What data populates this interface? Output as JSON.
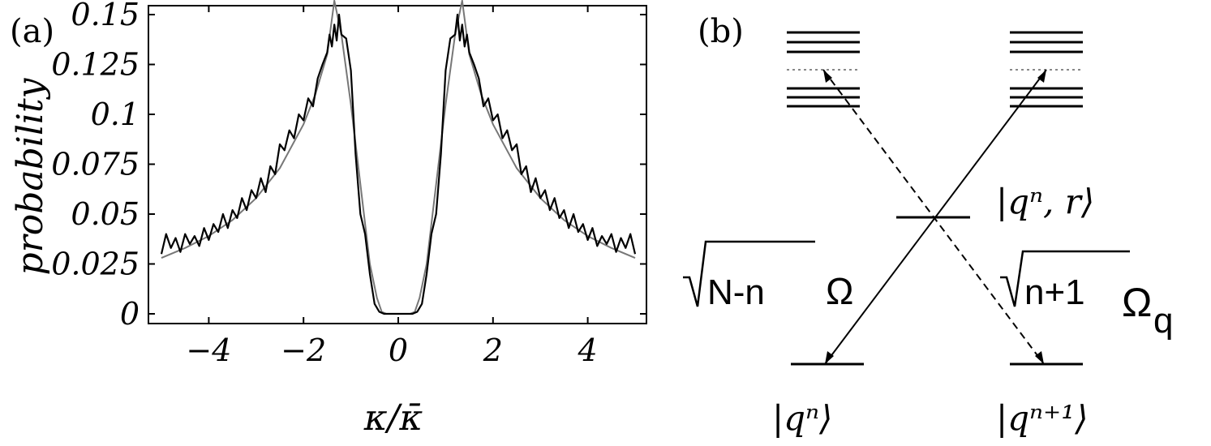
{
  "panel_a": {
    "label": "(a)",
    "chart_data": {
      "type": "line",
      "ylabel": "probability",
      "xlabel": "κ/κ̄",
      "xlim": [
        -5,
        5
      ],
      "ylim": [
        0,
        0.16
      ],
      "x_ticks": [
        -4,
        -2,
        0,
        2,
        4
      ],
      "y_ticks": [
        0,
        0.025,
        0.05,
        0.075,
        0.1,
        0.125,
        0.15
      ],
      "x_tick_labels": [
        "−4",
        "−2",
        "0",
        "2",
        "4"
      ],
      "y_tick_labels": [
        "0",
        "0.025",
        "0.05",
        "0.075",
        "0.1",
        "0.125",
        "0.15"
      ],
      "grid": false,
      "series": [
        {
          "style": "smooth",
          "x": [
            -5,
            -4.5,
            -4,
            -3.5,
            -3,
            -2.5,
            -2,
            -1.75,
            -1.5,
            -1.35,
            -1.2,
            -1.0,
            -0.8,
            -0.6,
            -0.45,
            -0.35,
            -0.25,
            0,
            0.25,
            0.35,
            0.45,
            0.6,
            0.8,
            1.0,
            1.2,
            1.35,
            1.5,
            1.75,
            2,
            2.5,
            3,
            3.5,
            4,
            4.5,
            5
          ],
          "y": [
            0.028,
            0.033,
            0.039,
            0.047,
            0.058,
            0.073,
            0.095,
            0.11,
            0.13,
            0.157,
            0.14,
            0.105,
            0.065,
            0.025,
            0.008,
            0.001,
            0,
            0,
            0,
            0.001,
            0.008,
            0.025,
            0.065,
            0.105,
            0.14,
            0.157,
            0.13,
            0.11,
            0.095,
            0.073,
            0.058,
            0.047,
            0.039,
            0.033,
            0.028
          ]
        },
        {
          "style": "noisy",
          "x": [
            -5,
            -4.9,
            -4.8,
            -4.7,
            -4.6,
            -4.5,
            -4.4,
            -4.3,
            -4.2,
            -4.1,
            -4.0,
            -3.9,
            -3.8,
            -3.7,
            -3.6,
            -3.5,
            -3.4,
            -3.3,
            -3.2,
            -3.1,
            -3.0,
            -2.9,
            -2.8,
            -2.7,
            -2.6,
            -2.5,
            -2.4,
            -2.3,
            -2.2,
            -2.1,
            -2.0,
            -1.9,
            -1.8,
            -1.7,
            -1.6,
            -1.5,
            -1.45,
            -1.4,
            -1.35,
            -1.3,
            -1.25,
            -1.2,
            -1.1,
            -1.0,
            -0.9,
            -0.8,
            -0.7,
            -0.6,
            -0.5,
            -0.4,
            -0.3,
            -0.2,
            0,
            0.2,
            0.3,
            0.4,
            0.5,
            0.6,
            0.7,
            0.8,
            0.9,
            1.0,
            1.1,
            1.2,
            1.25,
            1.3,
            1.35,
            1.4,
            1.45,
            1.5,
            1.6,
            1.7,
            1.8,
            1.9,
            2.0,
            2.1,
            2.2,
            2.3,
            2.4,
            2.5,
            2.6,
            2.7,
            2.8,
            2.9,
            3.0,
            3.1,
            3.2,
            3.3,
            3.4,
            3.5,
            3.6,
            3.7,
            3.8,
            3.9,
            4.0,
            4.1,
            4.2,
            4.3,
            4.4,
            4.5,
            4.6,
            4.7,
            4.8,
            4.9,
            5.0
          ],
          "y": [
            0.03,
            0.04,
            0.033,
            0.038,
            0.031,
            0.04,
            0.035,
            0.039,
            0.034,
            0.043,
            0.037,
            0.045,
            0.041,
            0.05,
            0.043,
            0.052,
            0.048,
            0.058,
            0.052,
            0.062,
            0.058,
            0.068,
            0.061,
            0.074,
            0.07,
            0.085,
            0.082,
            0.092,
            0.088,
            0.1,
            0.097,
            0.108,
            0.104,
            0.118,
            0.125,
            0.131,
            0.14,
            0.134,
            0.145,
            0.137,
            0.15,
            0.14,
            0.138,
            0.122,
            0.08,
            0.05,
            0.04,
            0.02,
            0.005,
            0.001,
            0,
            0,
            0,
            0,
            0,
            0.001,
            0.005,
            0.02,
            0.04,
            0.05,
            0.08,
            0.122,
            0.138,
            0.14,
            0.15,
            0.137,
            0.145,
            0.134,
            0.14,
            0.131,
            0.125,
            0.118,
            0.104,
            0.108,
            0.097,
            0.1,
            0.088,
            0.092,
            0.082,
            0.085,
            0.07,
            0.074,
            0.061,
            0.068,
            0.058,
            0.062,
            0.052,
            0.058,
            0.048,
            0.052,
            0.043,
            0.05,
            0.041,
            0.045,
            0.037,
            0.043,
            0.034,
            0.039,
            0.035,
            0.04,
            0.031,
            0.038,
            0.033,
            0.04,
            0.03
          ]
        }
      ]
    }
  },
  "panel_b": {
    "label": "(b)",
    "state_mid": "|qⁿ, r⟩",
    "state_left": "|qⁿ⟩",
    "state_right": "|qⁿ⁺¹⟩",
    "coupling_left_root": "N-n",
    "coupling_left_symbol": "Ω",
    "coupling_right_root": "n+1",
    "coupling_right_symbol": "Ω",
    "coupling_right_subscript": "q"
  }
}
